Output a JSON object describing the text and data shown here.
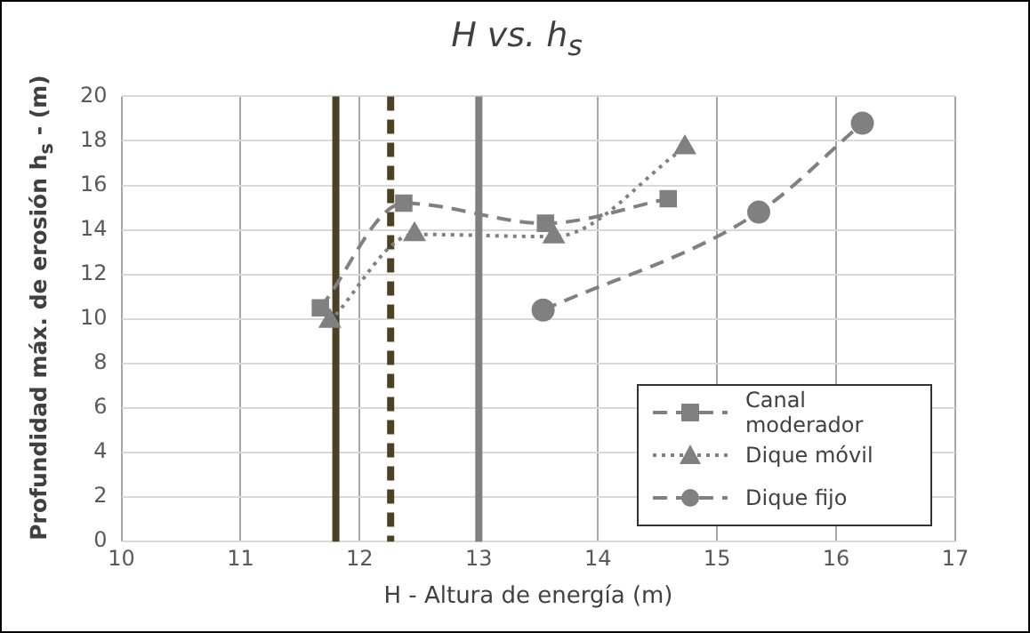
{
  "chart_data": {
    "type": "line",
    "title": "H vs. h$_{s}$",
    "xlabel": "H - Altura de energía (m)",
    "ylabel": "Profundidad máx. de erosión h$_{s}$ - (m)",
    "xlim": [
      10,
      17
    ],
    "xticks": [
      10,
      11,
      12,
      13,
      14,
      15,
      16,
      17
    ],
    "ylim": [
      0,
      20
    ],
    "yticks": [
      0,
      2,
      4,
      6,
      8,
      10,
      12,
      14,
      16,
      18,
      20
    ],
    "grid": true,
    "legend": "bottom right",
    "series": [
      {
        "name": "Canal moderador",
        "color": "#808080",
        "marker": "square",
        "line_style": "dashed",
        "x": [
          11.67,
          12.37,
          13.56,
          14.59
        ],
        "values": [
          10.5,
          15.2,
          14.3,
          15.4
        ]
      },
      {
        "name": "Dique móvil",
        "color": "#808080",
        "marker": "triangle",
        "line_style": "dotted",
        "x": [
          11.75,
          12.46,
          13.63,
          14.73
        ],
        "values": [
          9.9,
          13.8,
          13.7,
          17.7
        ]
      },
      {
        "name": "Dique fijo",
        "color": "#808080",
        "marker": "circle",
        "line_style": "dashed",
        "x": [
          13.54,
          15.35,
          16.22
        ],
        "values": [
          10.4,
          14.8,
          18.8
        ]
      }
    ],
    "ref_lines": [
      {
        "axis": "x",
        "value": 11.8,
        "color": "#4b4226",
        "line_style": "solid"
      },
      {
        "axis": "x",
        "value": 12.26,
        "color": "#4b4226",
        "line_style": "dashed"
      },
      {
        "axis": "x",
        "value": 13.0,
        "color": "#808080",
        "line_style": "solid"
      }
    ]
  }
}
